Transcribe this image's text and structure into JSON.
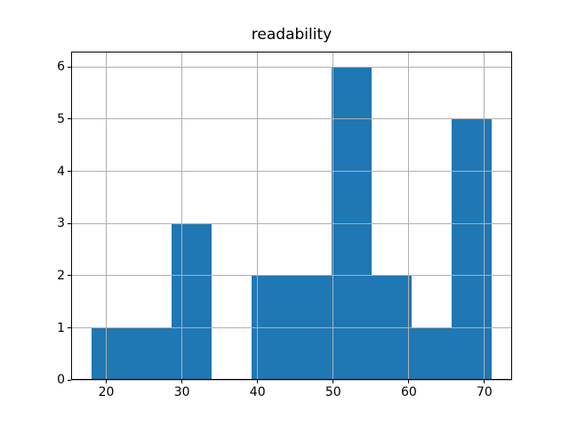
{
  "colors": {
    "bar": "#1f77b4",
    "grid": "#b0b0b0",
    "spine": "#000000",
    "tick": "#000000",
    "background": "#ffffff",
    "text": "#000000"
  },
  "chart_data": {
    "type": "bar",
    "subtype": "histogram",
    "title": "readability",
    "xlabel": "",
    "ylabel": "",
    "bin_edges": [
      18,
      23.3,
      28.6,
      33.9,
      39.2,
      44.5,
      49.8,
      55.1,
      60.4,
      65.7,
      71
    ],
    "counts": [
      1,
      1,
      3,
      0,
      2,
      2,
      6,
      2,
      1,
      5
    ],
    "xlim": [
      15.35,
      73.65
    ],
    "ylim": [
      0,
      6.3
    ],
    "xticks": [
      20,
      30,
      40,
      50,
      60,
      70
    ],
    "yticks": [
      0,
      1,
      2,
      3,
      4,
      5,
      6
    ],
    "grid": true,
    "grid_above_bars": true,
    "legend": "none"
  }
}
